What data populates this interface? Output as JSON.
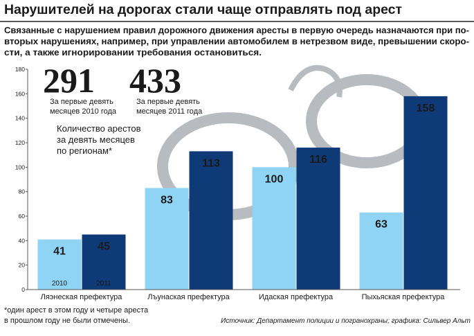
{
  "chart_data": {
    "type": "bar",
    "title": "Нарушителей на дорогах стали чаще отправлять под арест",
    "subtitle": [
      "Связанные с нарушением правил дорожного движения аресты в первую очередь назначаются при по-",
      "вторых нарушениях, например, при управлении автомобилем в нетрезвом виде, превышении скоро-",
      "сти, а также игнорировании требования остановиться."
    ],
    "categories": [
      "Ляэнеская префектура",
      "Лъунаская префектура",
      "Идаская префектура",
      "Пыхьяская префектура"
    ],
    "series": [
      {
        "name": "2010",
        "color": "#8fd4f5",
        "values": [
          41,
          83,
          100,
          63
        ]
      },
      {
        "name": "2011",
        "color": "#0e3a78",
        "values": [
          45,
          113,
          116,
          158
        ]
      }
    ],
    "totals": [
      {
        "value": 291,
        "color": "#8fd4f5",
        "text": [
          "За первые девять",
          "месяцев 2010 года"
        ]
      },
      {
        "value": 433,
        "color": "#0e3a78",
        "text": [
          "За первые девять",
          "месяцев 2011 года"
        ]
      }
    ],
    "annotation": [
      "Количество арестов",
      "за девять месяцев",
      "по регионам*"
    ],
    "footnote": [
      "*один арест в этом году и четыре ареста",
      "в прошлом году не были отмечены."
    ],
    "source": "Источник: Департамент полиции и погранохраны; графика: Сильвер Альт",
    "ylim": [
      0,
      180
    ],
    "yticks": [
      0,
      20,
      40,
      60,
      80,
      100,
      120,
      140,
      160,
      180
    ]
  }
}
